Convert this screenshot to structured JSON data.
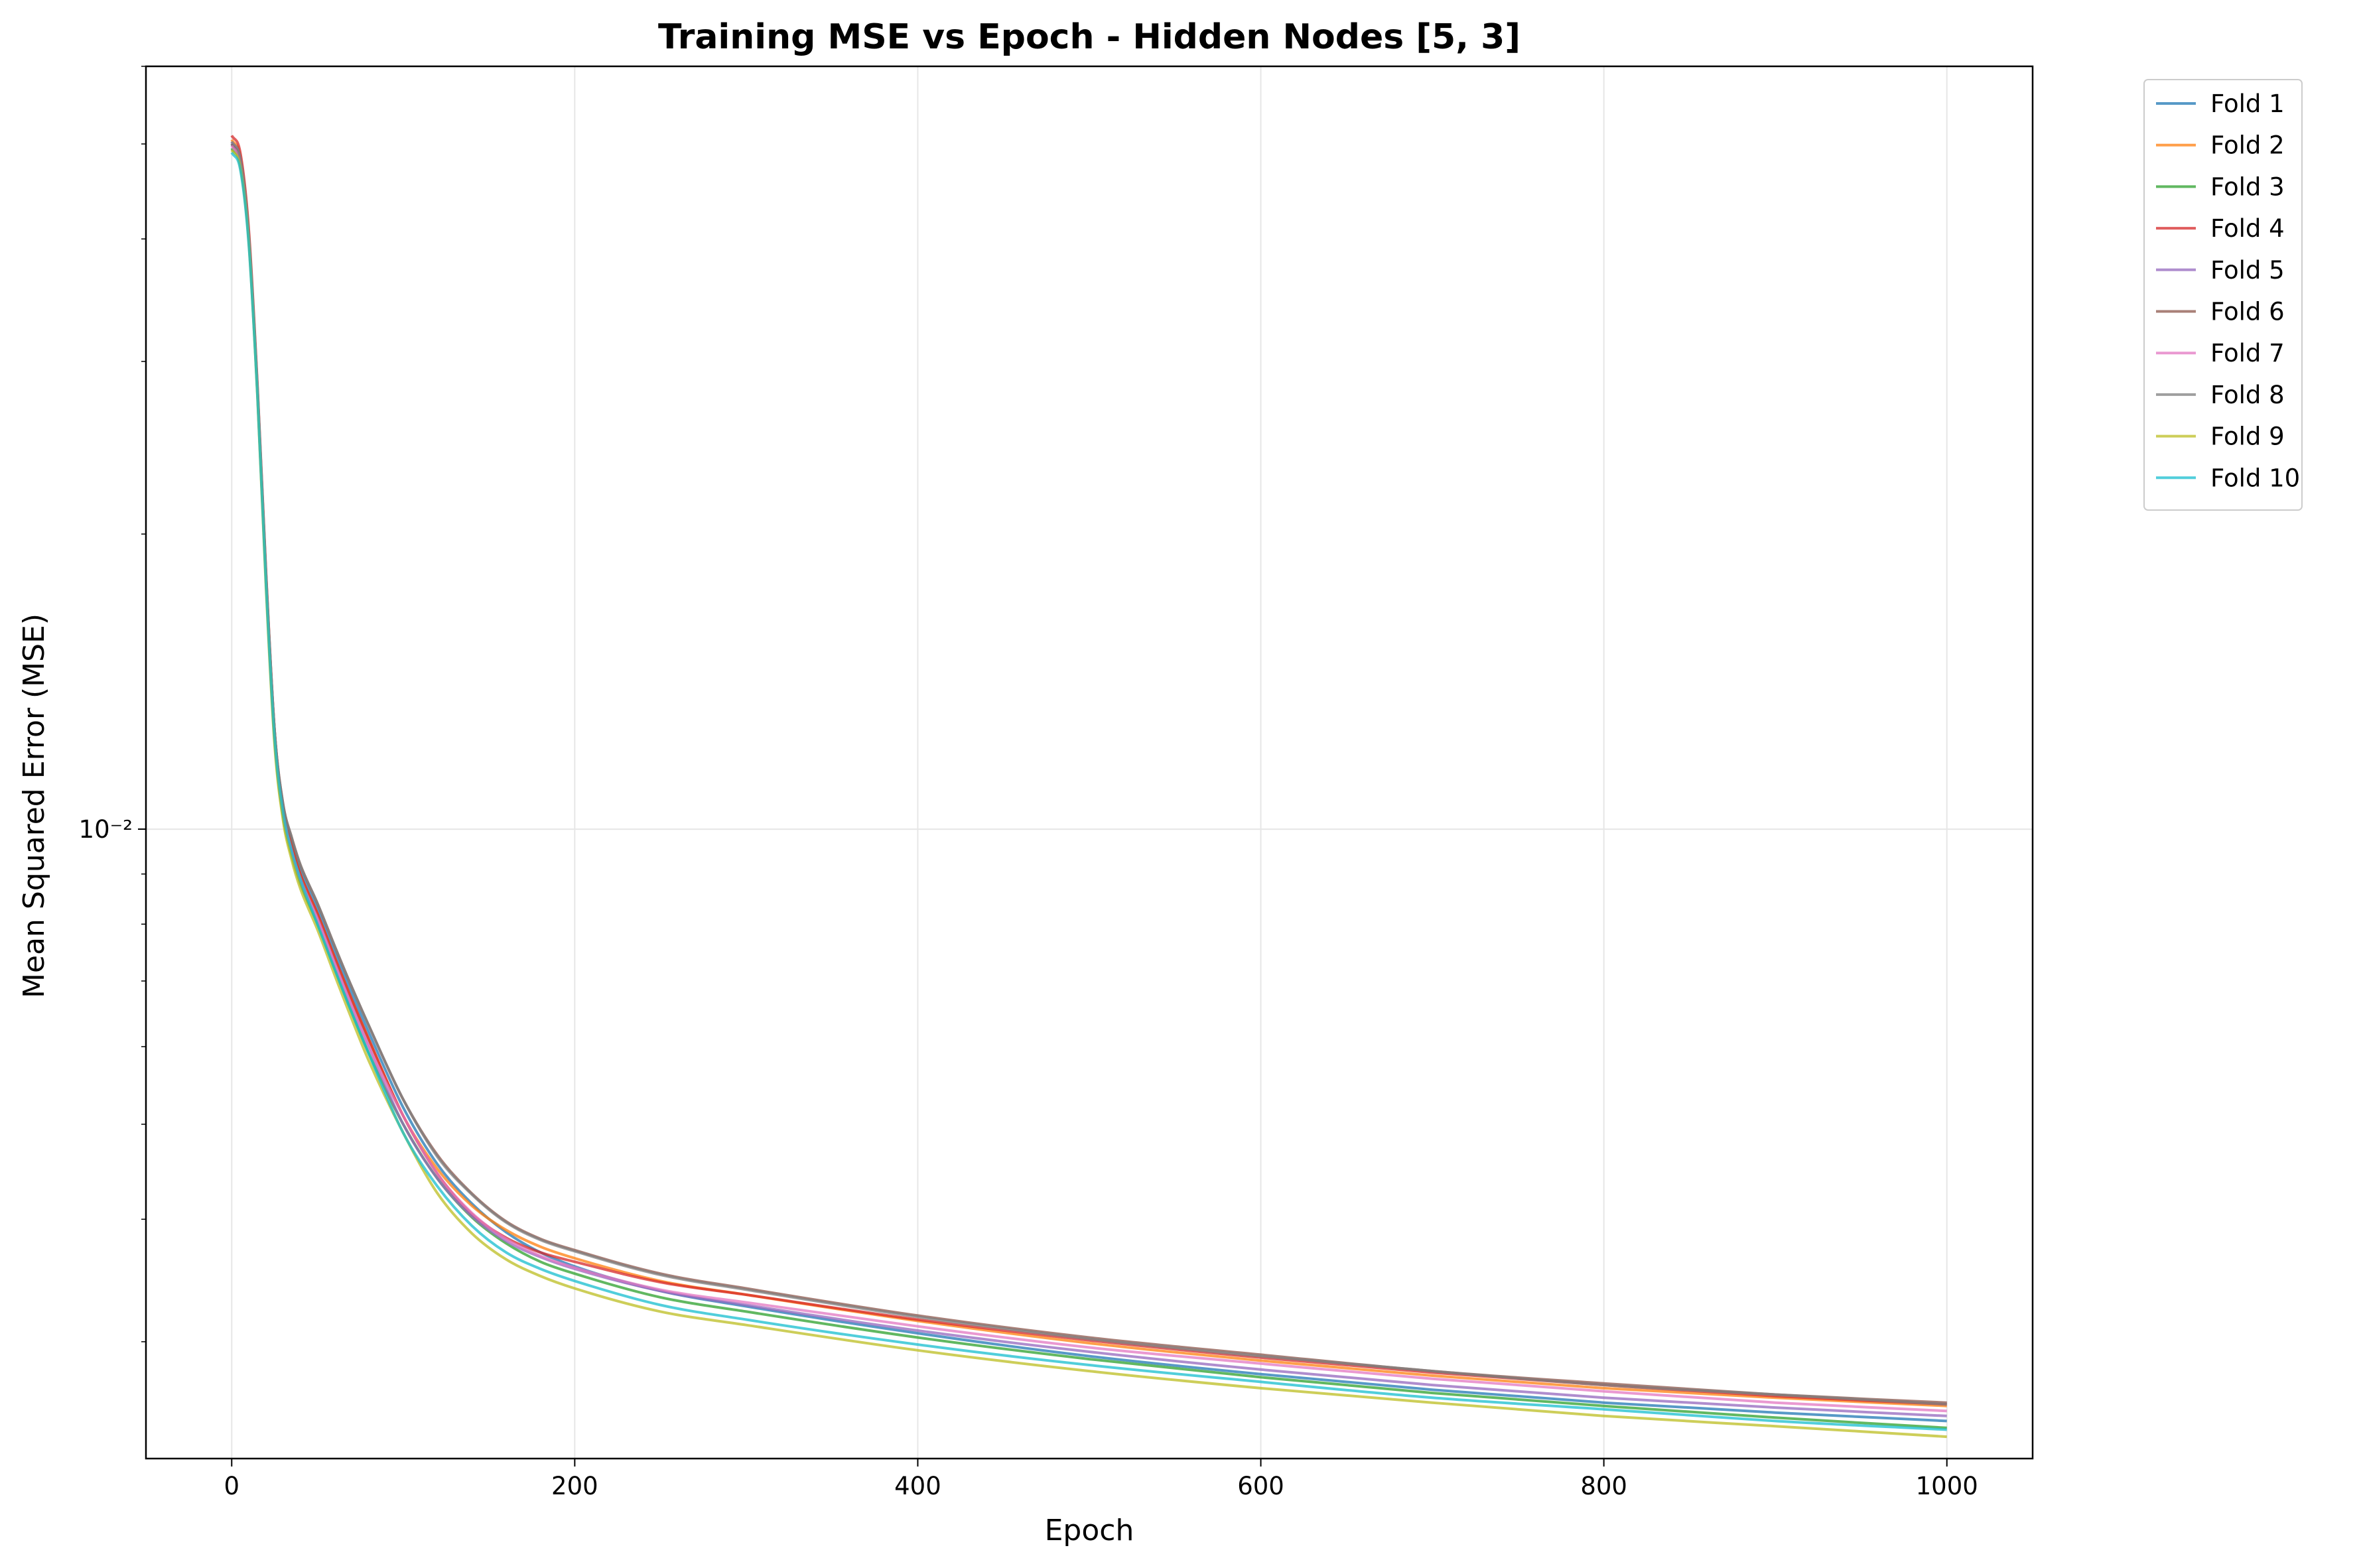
{
  "chart_data": {
    "type": "line",
    "title": "Training MSE vs Epoch - Hidden Nodes [5, 3]",
    "xlabel": "Epoch",
    "ylabel": "Mean Squared Error (MSE)",
    "xscale": "linear",
    "yscale": "log",
    "xlim": [
      -50,
      1050
    ],
    "ylim": [
      0.00228,
      0.06
    ],
    "xticks": [
      0,
      200,
      400,
      600,
      800,
      1000
    ],
    "xtick_labels": [
      "0",
      "200",
      "400",
      "600",
      "800",
      "1000"
    ],
    "yticks_major": [
      0.01
    ],
    "ytick_labels": [
      "10⁻²"
    ],
    "grid": true,
    "legend_position": "outside upper right",
    "x": [
      0,
      5,
      10,
      15,
      20,
      25,
      30,
      35,
      40,
      50,
      60,
      70,
      80,
      100,
      120,
      140,
      160,
      180,
      200,
      250,
      300,
      400,
      500,
      600,
      700,
      800,
      900,
      1000
    ],
    "series": [
      {
        "name": "Fold 1",
        "color": "#1f77b4",
        "values": [
          0.05,
          0.048,
          0.04,
          0.028,
          0.018,
          0.0125,
          0.0105,
          0.0097,
          0.0091,
          0.0083,
          0.0075,
          0.0068,
          0.0062,
          0.0052,
          0.00455,
          0.00415,
          0.00388,
          0.0037,
          0.00358,
          0.00338,
          0.00326,
          0.00306,
          0.0029,
          0.00278,
          0.00268,
          0.0026,
          0.00254,
          0.00249
        ]
      },
      {
        "name": "Fold 2",
        "color": "#ff7f0e",
        "values": [
          0.0505,
          0.0485,
          0.0405,
          0.0282,
          0.0182,
          0.0126,
          0.0105,
          0.0096,
          0.009,
          0.0082,
          0.0074,
          0.0067,
          0.0061,
          0.0051,
          0.0045,
          0.00413,
          0.0039,
          0.00375,
          0.00365,
          0.00346,
          0.00335,
          0.00315,
          0.00299,
          0.00287,
          0.00277,
          0.00269,
          0.00263,
          0.00258
        ]
      },
      {
        "name": "Fold 3",
        "color": "#2ca02c",
        "values": [
          0.0495,
          0.0476,
          0.0398,
          0.0278,
          0.0178,
          0.0123,
          0.0103,
          0.0094,
          0.0088,
          0.008,
          0.0072,
          0.0065,
          0.0059,
          0.005,
          0.0044,
          0.00402,
          0.00378,
          0.00362,
          0.00352,
          0.00333,
          0.00322,
          0.00303,
          0.00288,
          0.00276,
          0.00266,
          0.00258,
          0.00251,
          0.00245
        ]
      },
      {
        "name": "Fold 4",
        "color": "#d62728",
        "values": [
          0.051,
          0.049,
          0.0408,
          0.0284,
          0.0183,
          0.0126,
          0.0105,
          0.0096,
          0.009,
          0.0082,
          0.0074,
          0.0067,
          0.0061,
          0.0051,
          0.00445,
          0.00405,
          0.00383,
          0.0037,
          0.00362,
          0.00345,
          0.00335,
          0.00316,
          0.00301,
          0.00289,
          0.00279,
          0.00271,
          0.00264,
          0.00259
        ]
      },
      {
        "name": "Fold 5",
        "color": "#9467bd",
        "values": [
          0.0502,
          0.0482,
          0.0402,
          0.0281,
          0.0181,
          0.0125,
          0.0104,
          0.0095,
          0.0089,
          0.0081,
          0.0073,
          0.0066,
          0.006,
          0.005,
          0.0044,
          0.00403,
          0.0038,
          0.00366,
          0.00356,
          0.00338,
          0.00327,
          0.00308,
          0.00293,
          0.00281,
          0.00271,
          0.00263,
          0.00257,
          0.00252
        ]
      },
      {
        "name": "Fold 6",
        "color": "#8c564b",
        "values": [
          0.05,
          0.048,
          0.0401,
          0.028,
          0.0181,
          0.0126,
          0.0106,
          0.0098,
          0.0092,
          0.0084,
          0.0076,
          0.0069,
          0.0063,
          0.0053,
          0.00465,
          0.00425,
          0.00398,
          0.00382,
          0.00372,
          0.00352,
          0.0034,
          0.00319,
          0.00303,
          0.00291,
          0.0028,
          0.00272,
          0.00265,
          0.0026
        ]
      },
      {
        "name": "Fold 7",
        "color": "#e377c2",
        "values": [
          0.0498,
          0.0478,
          0.0399,
          0.0279,
          0.0179,
          0.0124,
          0.0104,
          0.0095,
          0.0089,
          0.0081,
          0.0073,
          0.0066,
          0.006,
          0.0051,
          0.00445,
          0.00406,
          0.00382,
          0.00367,
          0.00357,
          0.00339,
          0.00329,
          0.00311,
          0.00296,
          0.00285,
          0.00275,
          0.00267,
          0.0026,
          0.00255
        ]
      },
      {
        "name": "Fold 8",
        "color": "#7f7f7f",
        "values": [
          0.0503,
          0.0483,
          0.0403,
          0.0282,
          0.0182,
          0.0126,
          0.0106,
          0.0098,
          0.0092,
          0.0084,
          0.0076,
          0.0069,
          0.0063,
          0.0053,
          0.00463,
          0.00424,
          0.00397,
          0.00381,
          0.00371,
          0.00351,
          0.00339,
          0.00318,
          0.00302,
          0.0029,
          0.0028,
          0.00271,
          0.00265,
          0.00259
        ]
      },
      {
        "name": "Fold 9",
        "color": "#bcbd22",
        "values": [
          0.0493,
          0.0474,
          0.0396,
          0.0276,
          0.0176,
          0.0122,
          0.0102,
          0.0093,
          0.0087,
          0.0079,
          0.0071,
          0.0064,
          0.0058,
          0.0049,
          0.00425,
          0.00387,
          0.00364,
          0.0035,
          0.0034,
          0.00322,
          0.00312,
          0.00294,
          0.0028,
          0.00269,
          0.0026,
          0.00252,
          0.00246,
          0.0024
        ]
      },
      {
        "name": "Fold 10",
        "color": "#17becf",
        "values": [
          0.049,
          0.0471,
          0.0394,
          0.0277,
          0.0178,
          0.0124,
          0.0104,
          0.0095,
          0.0089,
          0.008,
          0.0072,
          0.0065,
          0.0059,
          0.0049,
          0.00432,
          0.00394,
          0.0037,
          0.00356,
          0.00346,
          0.00327,
          0.00316,
          0.00298,
          0.00284,
          0.00273,
          0.00263,
          0.00256,
          0.00249,
          0.00244
        ]
      }
    ]
  }
}
